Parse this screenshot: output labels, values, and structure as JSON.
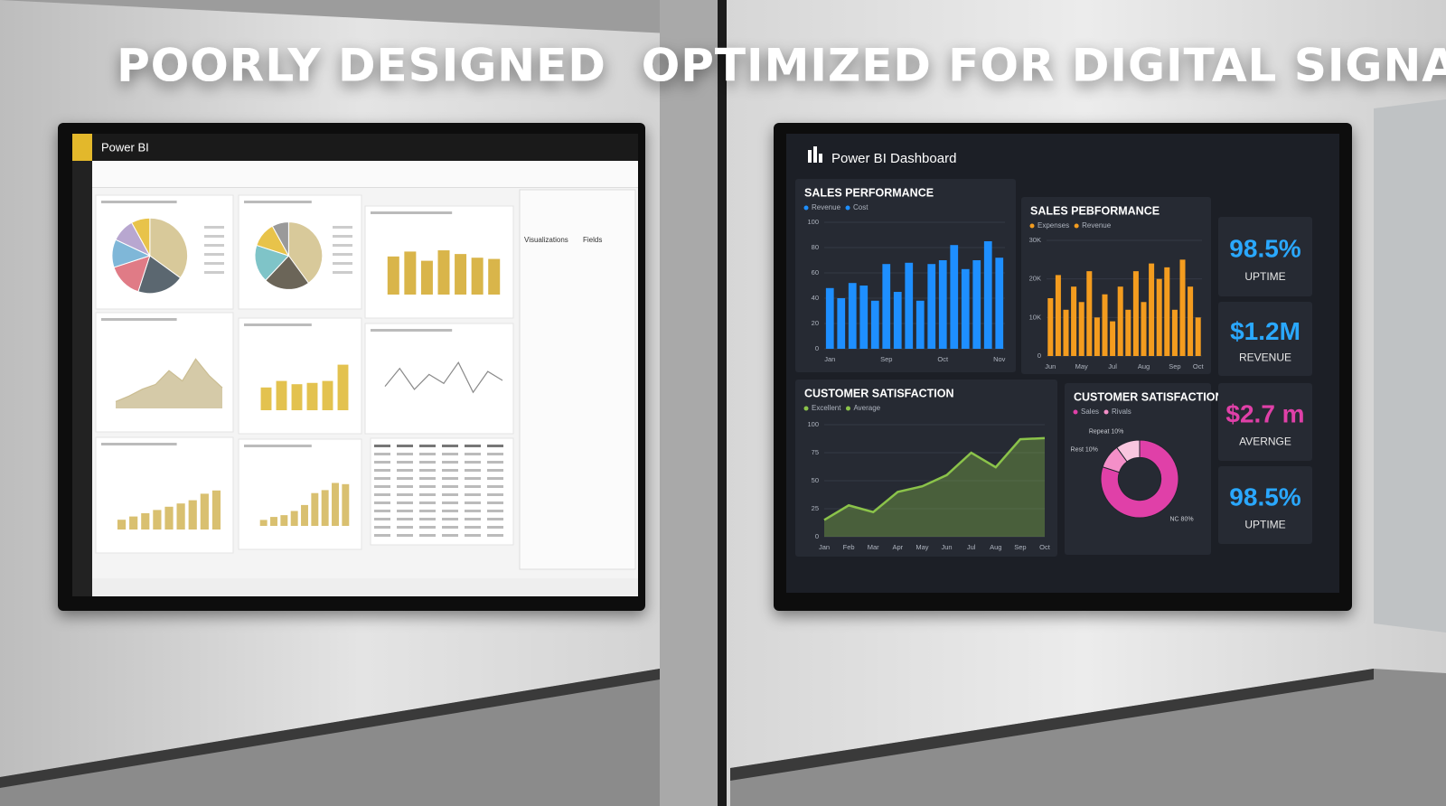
{
  "left": {
    "heading": "POORLY DESIGNED",
    "app_title": "Power BI",
    "panes": [
      "Visualizations",
      "Fields"
    ],
    "charts": [
      {
        "type": "pie",
        "colors": [
          "#d8c99a",
          "#5b6770",
          "#e07b86",
          "#7fb7d8",
          "#b8a7d0",
          "#e8c34a"
        ],
        "values": [
          35,
          20,
          15,
          12,
          10,
          8
        ]
      },
      {
        "type": "pie",
        "colors": [
          "#d8c99a",
          "#6b6558",
          "#7fc4c8",
          "#e8c34a",
          "#9a9a9a"
        ],
        "values": [
          40,
          22,
          18,
          12,
          8
        ]
      },
      {
        "type": "bar",
        "color": "#d9b54a",
        "ylim": [
          0,
          100
        ],
        "values": [
          62,
          70,
          55,
          72,
          66,
          60,
          58
        ]
      },
      {
        "type": "area",
        "color": "#cbbd92",
        "ylim": [
          0,
          100
        ],
        "values": [
          10,
          18,
          28,
          35,
          55,
          40,
          72,
          48,
          30
        ]
      },
      {
        "type": "bar",
        "color": "#e3c24f",
        "ylim": [
          0,
          100
        ],
        "values": [
          35,
          45,
          40,
          42,
          45,
          70
        ]
      },
      {
        "type": "line",
        "color": "#8a8a8a",
        "ylim": [
          0,
          100
        ],
        "values": [
          40,
          70,
          35,
          60,
          45,
          80,
          30,
          65,
          50
        ]
      },
      {
        "type": "bar",
        "color": "#d9c070",
        "ylim": [
          0,
          100
        ],
        "values": [
          15,
          20,
          25,
          30,
          35,
          40,
          45,
          55,
          60
        ]
      },
      {
        "type": "bar",
        "color": "#d9c070",
        "ylim": [
          0,
          100
        ],
        "values": [
          10,
          15,
          18,
          25,
          35,
          55,
          60,
          72,
          70
        ]
      }
    ]
  },
  "right": {
    "heading": "OPTIMIZED FOR DIGITAL SIGNAGE",
    "title": "Power BI Dashboard",
    "charts": [
      {
        "type": "bar",
        "title": "SALES PERFORMANCE",
        "legend": [
          "Revenue",
          "Cost"
        ],
        "color": "#1e8fff",
        "ylim": [
          0,
          100
        ],
        "yticks": [
          0,
          20,
          40,
          60,
          80,
          100
        ],
        "categories": [
          "Jan",
          null,
          null,
          null,
          null,
          "Sep",
          null,
          null,
          null,
          null,
          "Oct",
          null,
          null,
          null,
          null,
          "Nov"
        ],
        "values": [
          48,
          40,
          52,
          50,
          38,
          67,
          45,
          68,
          38,
          67,
          70,
          82,
          63,
          70,
          85,
          72
        ]
      },
      {
        "type": "bar",
        "title": "SALES PEBFORMANCE",
        "legend": [
          "Expenses",
          "Revenue"
        ],
        "color": "#f39c1f",
        "ylim": [
          0,
          30000
        ],
        "yticks": [
          {
            "value": 0,
            "label": "0"
          },
          {
            "value": 10000,
            "label": "10K"
          },
          {
            "value": 20000,
            "label": "20K"
          },
          {
            "value": 30000,
            "label": "30K"
          }
        ],
        "categories": [
          "Jun",
          null,
          null,
          null,
          "May",
          null,
          null,
          null,
          "Jul",
          null,
          null,
          null,
          "Aug",
          null,
          null,
          null,
          "Sep",
          null,
          null,
          "Oct"
        ],
        "values": [
          15000,
          21000,
          12000,
          18000,
          14000,
          22000,
          10000,
          16000,
          9000,
          18000,
          12000,
          22000,
          14000,
          24000,
          20000,
          23000,
          12000,
          25000,
          18000,
          10000
        ]
      },
      {
        "type": "area",
        "title": "CUSTOMER SATISFACTION",
        "legend": [
          "Excellent",
          "Average"
        ],
        "color": "#8bc34a",
        "ylim": [
          0,
          100
        ],
        "yticks": [
          0,
          25,
          50,
          75,
          100
        ],
        "categories": [
          "Jan",
          "Feb",
          "Mar",
          "Apr",
          "May",
          "Jun",
          "Jul",
          "Aug",
          "Sep",
          "Oct"
        ],
        "values": [
          15,
          28,
          22,
          40,
          45,
          55,
          75,
          62,
          87,
          88
        ]
      },
      {
        "type": "donut",
        "title": "CUSTOMER SATISFACTION",
        "legend": [
          "Sales",
          "Rivals"
        ],
        "colors": [
          "#e040a8",
          "#f48fc8",
          "#f9c6df"
        ],
        "values": [
          80,
          10,
          10
        ],
        "value_labels": [
          "NC 80%",
          "Rest 10%",
          "Repeat 10%"
        ]
      }
    ],
    "kpis": [
      {
        "value": "98.5%",
        "label": "UPTIME",
        "color": "#2aa8ff"
      },
      {
        "value": "$1.2M",
        "label": "REVENUE",
        "color": "#2aa8ff"
      },
      {
        "value": "$2.7 m",
        "label": "AVERNGE",
        "color": "#e040a8"
      },
      {
        "value": "98.5%",
        "label": "UPTIME",
        "color": "#2aa8ff"
      }
    ]
  }
}
